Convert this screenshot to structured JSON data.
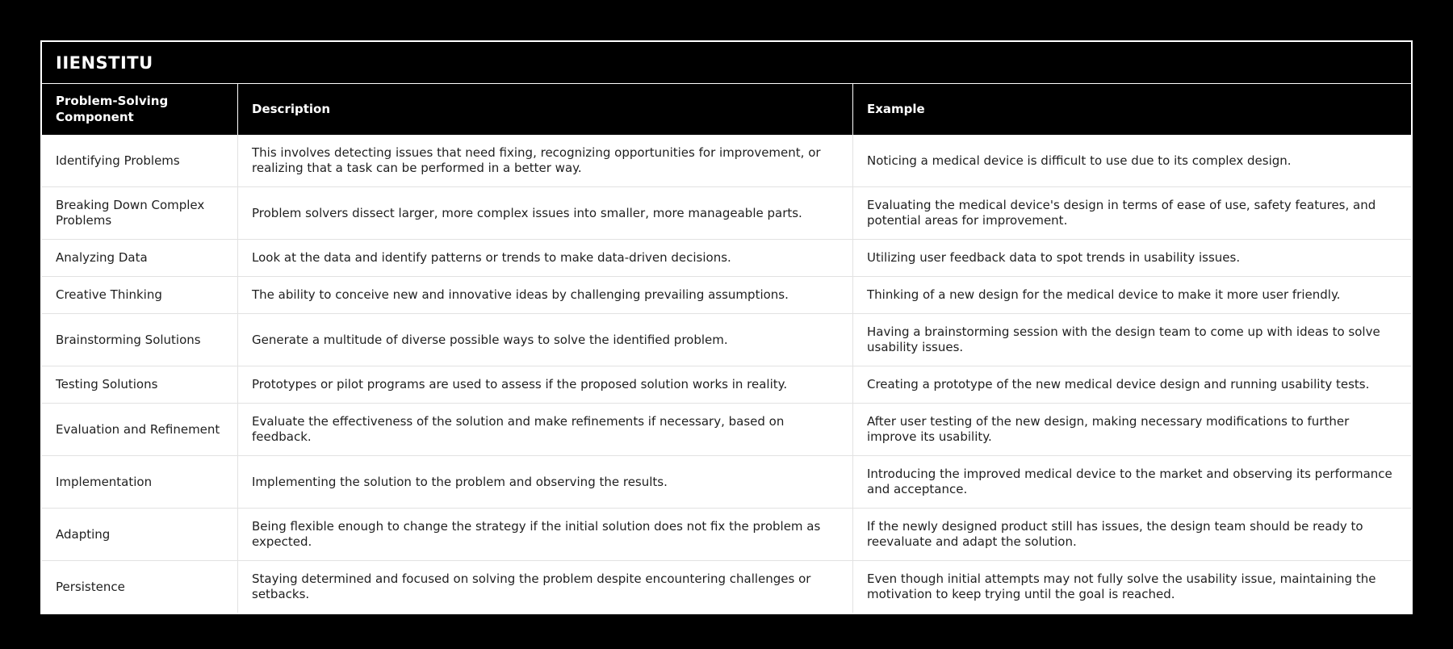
{
  "page": {
    "background_color": "#000000"
  },
  "table": {
    "title": "IIENSTITU",
    "colors": {
      "outer_border": "#ffffff",
      "header_background": "#000000",
      "header_text": "#ffffff",
      "row_background": "#ffffff",
      "row_text": "#1f1f1f",
      "divider": "#e2e2e2"
    },
    "columns": [
      "Problem-Solving Component",
      "Description",
      "Example"
    ],
    "rows": [
      {
        "component": "Identifying Problems",
        "description": "This involves detecting issues that need fixing, recognizing opportunities for improvement, or realizing that a task can be performed in a better way.",
        "example": "Noticing a medical device is difficult to use due to its complex design."
      },
      {
        "component": "Breaking Down Complex Problems",
        "description": "Problem solvers dissect larger, more complex issues into smaller, more manageable parts.",
        "example": "Evaluating the medical device's design in terms of ease of use, safety features, and potential areas for improvement."
      },
      {
        "component": "Analyzing Data",
        "description": "Look at the data and identify patterns or trends to make data-driven decisions.",
        "example": "Utilizing user feedback data to spot trends in usability issues."
      },
      {
        "component": "Creative Thinking",
        "description": "The ability to conceive new and innovative ideas by challenging prevailing assumptions.",
        "example": "Thinking of a new design for the medical device to make it more user friendly."
      },
      {
        "component": "Brainstorming Solutions",
        "description": "Generate a multitude of diverse possible ways to solve the identified problem.",
        "example": "Having a brainstorming session with the design team to come up with ideas to solve usability issues."
      },
      {
        "component": "Testing Solutions",
        "description": "Prototypes or pilot programs are used to assess if the proposed solution works in reality.",
        "example": "Creating a prototype of the new medical device design and running usability tests."
      },
      {
        "component": "Evaluation and Refinement",
        "description": "Evaluate the effectiveness of the solution and make refinements if necessary, based on feedback.",
        "example": "After user testing of the new design, making necessary modifications to further improve its usability."
      },
      {
        "component": "Implementation",
        "description": "Implementing the solution to the problem and observing the results.",
        "example": "Introducing the improved medical device to the market and observing its performance and acceptance."
      },
      {
        "component": "Adapting",
        "description": "Being flexible enough to change the strategy if the initial solution does not fix the problem as expected.",
        "example": "If the newly designed product still has issues, the design team should be ready to reevaluate and adapt the solution."
      },
      {
        "component": "Persistence",
        "description": "Staying determined and focused on solving the problem despite encountering challenges or setbacks.",
        "example": "Even though initial attempts may not fully solve the usability issue, maintaining the motivation to keep trying until the goal is reached."
      }
    ]
  }
}
